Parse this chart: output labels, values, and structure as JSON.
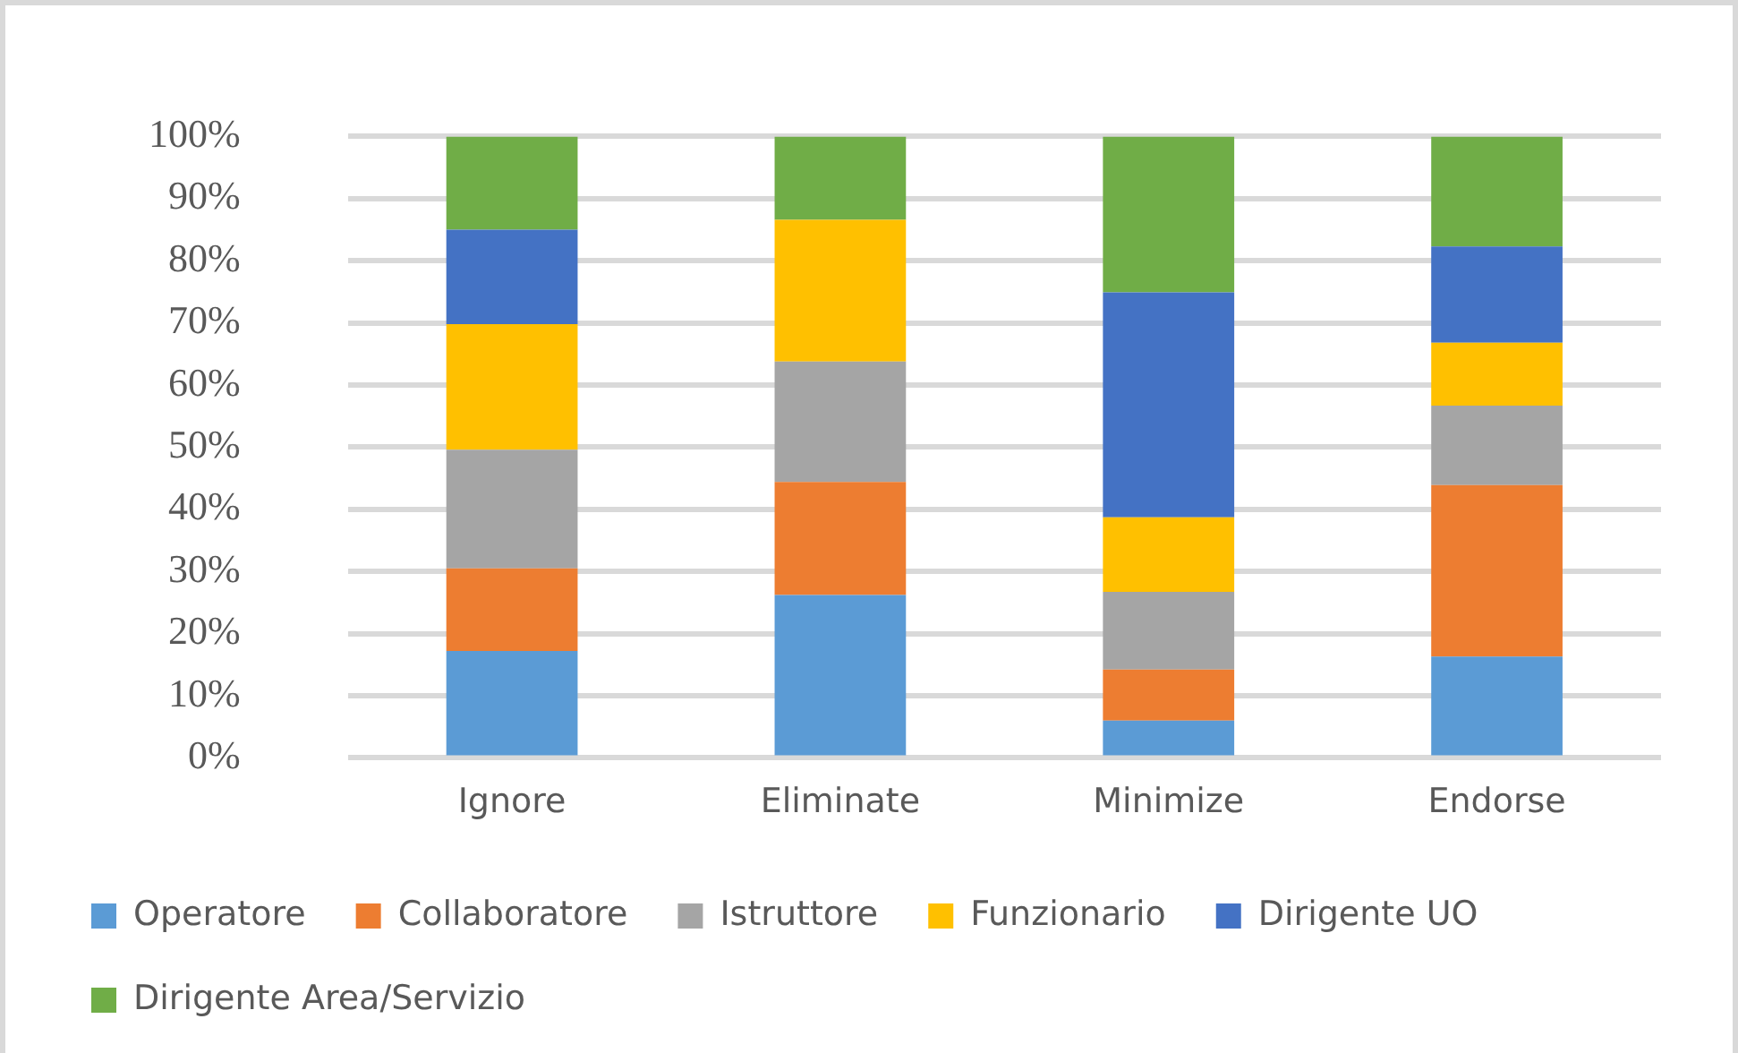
{
  "chart_data": {
    "type": "bar",
    "stacked": true,
    "categories": [
      "Ignore",
      "Eliminate",
      "Minimize",
      "Endorse"
    ],
    "series": [
      {
        "name": "Operatore",
        "color": "#5b9bd5",
        "values": [
          17.2,
          26.2,
          6,
          16.3
        ]
      },
      {
        "name": "Collaboratore",
        "color": "#ed7d31",
        "values": [
          13.3,
          18.2,
          8.2,
          27.6
        ]
      },
      {
        "name": "Istruttore",
        "color": "#a5a5a5",
        "values": [
          19.1,
          19.4,
          12.5,
          12.8
        ]
      },
      {
        "name": "Funzionario",
        "color": "#ffc000",
        "values": [
          20.2,
          22.8,
          12,
          10.1
        ]
      },
      {
        "name": "Dirigente UO",
        "color": "#4472c4",
        "values": [
          15.2,
          0,
          36.2,
          15.5
        ]
      },
      {
        "name": "Dirigente Area/Servizio",
        "color": "#70ad47",
        "values": [
          15,
          13.4,
          25.1,
          17.7
        ]
      }
    ],
    "ylim": [
      0,
      100
    ],
    "yticks": [
      {
        "value": 0,
        "label": "0%"
      },
      {
        "value": 10,
        "label": "10%"
      },
      {
        "value": 20,
        "label": "20%"
      },
      {
        "value": 30,
        "label": "30%"
      },
      {
        "value": 40,
        "label": "40%"
      },
      {
        "value": 50,
        "label": "50%"
      },
      {
        "value": 60,
        "label": "60%"
      },
      {
        "value": 70,
        "label": "70%"
      },
      {
        "value": 80,
        "label": "80%"
      },
      {
        "value": 90,
        "label": "90%"
      },
      {
        "value": 100,
        "label": "100%"
      }
    ],
    "grid": "y",
    "legend": "bottom"
  }
}
